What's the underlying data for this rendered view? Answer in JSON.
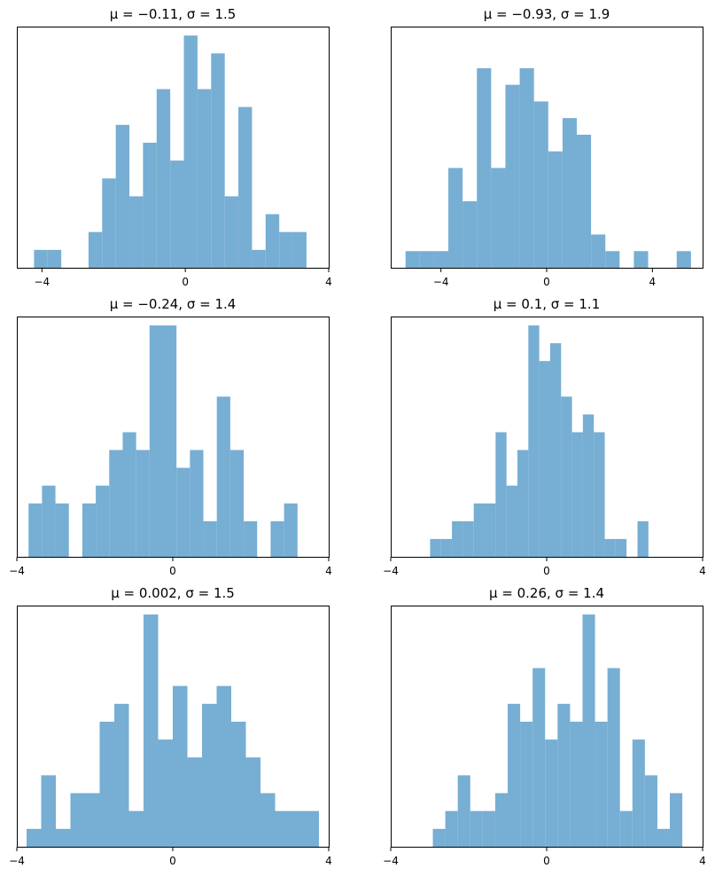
{
  "colors": {
    "bar": "#77aed3",
    "axes": "#000000",
    "background": "#ffffff"
  },
  "chart_data": [
    {
      "type": "bar",
      "title": "μ = −0.11,    σ = 1.5",
      "xlabel": "",
      "ylabel": "",
      "xlim": [
        -4.7,
        4.0
      ],
      "ylim": [
        0,
        13.5
      ],
      "xticks": [
        -4,
        0,
        4
      ],
      "xtick_labels": [
        "−4",
        "0",
        "4"
      ],
      "yticks": [],
      "grid": false,
      "bin_width": 0.38,
      "bins": [
        {
          "x0": -4.22,
          "count": 1
        },
        {
          "x0": -3.84,
          "count": 1
        },
        {
          "x0": -3.46,
          "count": 0
        },
        {
          "x0": -3.08,
          "count": 0
        },
        {
          "x0": -2.7,
          "count": 2
        },
        {
          "x0": -2.32,
          "count": 5
        },
        {
          "x0": -1.94,
          "count": 8
        },
        {
          "x0": -1.56,
          "count": 4
        },
        {
          "x0": -1.18,
          "count": 7
        },
        {
          "x0": -0.8,
          "count": 10
        },
        {
          "x0": -0.42,
          "count": 6
        },
        {
          "x0": -0.04,
          "count": 13
        },
        {
          "x0": 0.34,
          "count": 10
        },
        {
          "x0": 0.72,
          "count": 12
        },
        {
          "x0": 1.1,
          "count": 4
        },
        {
          "x0": 1.48,
          "count": 9
        },
        {
          "x0": 1.86,
          "count": 1
        },
        {
          "x0": 2.24,
          "count": 3
        },
        {
          "x0": 2.62,
          "count": 2
        },
        {
          "x0": 3.0,
          "count": 2
        }
      ]
    },
    {
      "type": "bar",
      "title": "μ = −0.93,    σ = 1.9",
      "xlabel": "",
      "ylabel": "",
      "xlim": [
        -5.9,
        5.9
      ],
      "ylim": [
        0,
        14.5
      ],
      "xticks": [
        -4,
        0,
        4
      ],
      "xtick_labels": [
        "−4",
        "0",
        "4"
      ],
      "yticks": [],
      "grid": false,
      "bin_width": 0.54,
      "bins": [
        {
          "x0": -5.34,
          "count": 1
        },
        {
          "x0": -4.8,
          "count": 1
        },
        {
          "x0": -4.26,
          "count": 1
        },
        {
          "x0": -3.72,
          "count": 6
        },
        {
          "x0": -3.18,
          "count": 4
        },
        {
          "x0": -2.64,
          "count": 12
        },
        {
          "x0": -2.1,
          "count": 6
        },
        {
          "x0": -1.56,
          "count": 11
        },
        {
          "x0": -1.02,
          "count": 12
        },
        {
          "x0": -0.48,
          "count": 10
        },
        {
          "x0": 0.06,
          "count": 7
        },
        {
          "x0": 0.6,
          "count": 9
        },
        {
          "x0": 1.14,
          "count": 8
        },
        {
          "x0": 1.68,
          "count": 2
        },
        {
          "x0": 2.22,
          "count": 1
        },
        {
          "x0": 2.76,
          "count": 0
        },
        {
          "x0": 3.3,
          "count": 1
        },
        {
          "x0": 3.84,
          "count": 0
        },
        {
          "x0": 4.38,
          "count": 0
        },
        {
          "x0": 4.92,
          "count": 1
        }
      ]
    },
    {
      "type": "bar",
      "title": "μ = −0.24,    σ = 1.4",
      "xlabel": "",
      "ylabel": "",
      "xlim": [
        -4.0,
        4.0
      ],
      "ylim": [
        0,
        13.5
      ],
      "xticks": [
        -4,
        0,
        4
      ],
      "xtick_labels": [
        "−4",
        "0",
        "4"
      ],
      "yticks": [],
      "grid": false,
      "bin_width": 0.345,
      "bins": [
        {
          "x0": -3.7,
          "count": 3
        },
        {
          "x0": -3.355,
          "count": 4
        },
        {
          "x0": -3.01,
          "count": 3
        },
        {
          "x0": -2.665,
          "count": 0
        },
        {
          "x0": -2.32,
          "count": 3
        },
        {
          "x0": -1.975,
          "count": 4
        },
        {
          "x0": -1.63,
          "count": 6
        },
        {
          "x0": -1.285,
          "count": 7
        },
        {
          "x0": -0.94,
          "count": 6
        },
        {
          "x0": -0.595,
          "count": 13
        },
        {
          "x0": -0.25,
          "count": 13
        },
        {
          "x0": 0.095,
          "count": 5
        },
        {
          "x0": 0.44,
          "count": 6
        },
        {
          "x0": 0.785,
          "count": 2
        },
        {
          "x0": 1.13,
          "count": 9
        },
        {
          "x0": 1.475,
          "count": 6
        },
        {
          "x0": 1.82,
          "count": 2
        },
        {
          "x0": 2.165,
          "count": 0
        },
        {
          "x0": 2.51,
          "count": 2
        },
        {
          "x0": 2.855,
          "count": 3
        }
      ]
    },
    {
      "type": "bar",
      "title": "μ = 0.1,    σ = 1.1",
      "xlabel": "",
      "ylabel": "",
      "xlim": [
        -4.0,
        4.0
      ],
      "ylim": [
        0,
        13.5
      ],
      "xticks": [
        -4,
        0,
        4
      ],
      "xtick_labels": [
        "−4",
        "0",
        "4"
      ],
      "yticks": [],
      "grid": false,
      "bin_width": 0.28,
      "bins": [
        {
          "x0": -2.99,
          "count": 1
        },
        {
          "x0": -2.71,
          "count": 1
        },
        {
          "x0": -2.43,
          "count": 2
        },
        {
          "x0": -2.15,
          "count": 2
        },
        {
          "x0": -1.87,
          "count": 3
        },
        {
          "x0": -1.59,
          "count": 3
        },
        {
          "x0": -1.31,
          "count": 7
        },
        {
          "x0": -1.03,
          "count": 4
        },
        {
          "x0": -0.75,
          "count": 6
        },
        {
          "x0": -0.47,
          "count": 13
        },
        {
          "x0": -0.19,
          "count": 11
        },
        {
          "x0": 0.09,
          "count": 12
        },
        {
          "x0": 0.37,
          "count": 9
        },
        {
          "x0": 0.65,
          "count": 7
        },
        {
          "x0": 0.93,
          "count": 8
        },
        {
          "x0": 1.21,
          "count": 7
        },
        {
          "x0": 1.49,
          "count": 1
        },
        {
          "x0": 1.77,
          "count": 1
        },
        {
          "x0": 2.05,
          "count": 0
        },
        {
          "x0": 2.33,
          "count": 2
        }
      ]
    },
    {
      "type": "bar",
      "title": "μ = 0.002,    σ = 1.5",
      "xlabel": "",
      "ylabel": "",
      "xlim": [
        -4.0,
        4.0
      ],
      "ylim": [
        0,
        13.5
      ],
      "xticks": [
        -4,
        0,
        4
      ],
      "xtick_labels": [
        "−4",
        "0",
        "4"
      ],
      "yticks": [],
      "grid": false,
      "bin_width": 0.375,
      "bins": [
        {
          "x0": -3.75,
          "count": 1
        },
        {
          "x0": -3.375,
          "count": 4
        },
        {
          "x0": -3.0,
          "count": 1
        },
        {
          "x0": -2.625,
          "count": 3
        },
        {
          "x0": -2.25,
          "count": 3
        },
        {
          "x0": -1.875,
          "count": 7
        },
        {
          "x0": -1.5,
          "count": 8
        },
        {
          "x0": -1.125,
          "count": 2
        },
        {
          "x0": -0.75,
          "count": 13
        },
        {
          "x0": -0.375,
          "count": 6
        },
        {
          "x0": 0.0,
          "count": 9
        },
        {
          "x0": 0.375,
          "count": 5
        },
        {
          "x0": 0.75,
          "count": 8
        },
        {
          "x0": 1.125,
          "count": 9
        },
        {
          "x0": 1.5,
          "count": 7
        },
        {
          "x0": 1.875,
          "count": 5
        },
        {
          "x0": 2.25,
          "count": 3
        },
        {
          "x0": 2.625,
          "count": 2
        },
        {
          "x0": 3.0,
          "count": 2
        },
        {
          "x0": 3.375,
          "count": 2
        }
      ]
    },
    {
      "type": "bar",
      "title": "μ = 0.26,    σ = 1.4",
      "xlabel": "",
      "ylabel": "",
      "xlim": [
        -4.0,
        4.0
      ],
      "ylim": [
        0,
        13.5
      ],
      "xticks": [
        -4,
        0,
        4
      ],
      "xtick_labels": [
        "−4",
        "0",
        "4"
      ],
      "yticks": [],
      "grid": false,
      "bin_width": 0.32,
      "bins": [
        {
          "x0": -2.92,
          "count": 1
        },
        {
          "x0": -2.6,
          "count": 2
        },
        {
          "x0": -2.28,
          "count": 4
        },
        {
          "x0": -1.96,
          "count": 2
        },
        {
          "x0": -1.64,
          "count": 2
        },
        {
          "x0": -1.32,
          "count": 3
        },
        {
          "x0": -1.0,
          "count": 8
        },
        {
          "x0": -0.68,
          "count": 7
        },
        {
          "x0": -0.36,
          "count": 10
        },
        {
          "x0": -0.04,
          "count": 6
        },
        {
          "x0": 0.28,
          "count": 8
        },
        {
          "x0": 0.6,
          "count": 7
        },
        {
          "x0": 0.92,
          "count": 13
        },
        {
          "x0": 1.24,
          "count": 7
        },
        {
          "x0": 1.56,
          "count": 10
        },
        {
          "x0": 1.88,
          "count": 2
        },
        {
          "x0": 2.2,
          "count": 6
        },
        {
          "x0": 2.52,
          "count": 4
        },
        {
          "x0": 2.84,
          "count": 1
        },
        {
          "x0": 3.16,
          "count": 3
        }
      ]
    }
  ]
}
